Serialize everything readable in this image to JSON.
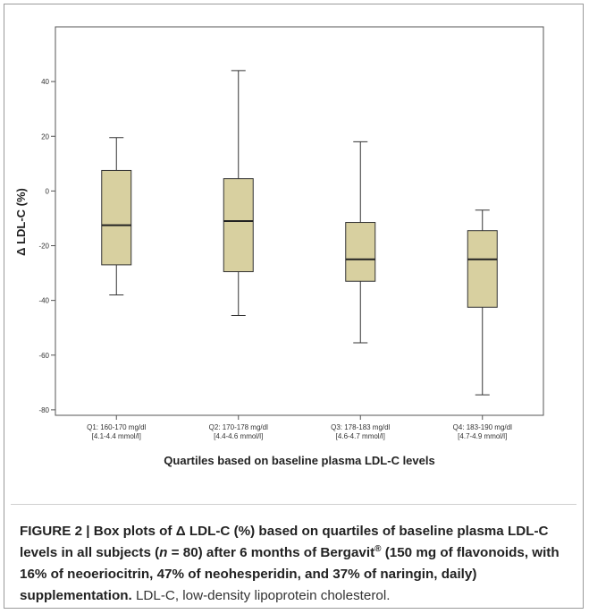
{
  "chart_data": {
    "type": "box",
    "ylabel": "Δ LDL-C (%)",
    "xlabel": "Quartiles  based on baseline plasma LDL-C levels",
    "ylim": [
      -82,
      60
    ],
    "yticks": [
      40,
      20,
      0,
      -20,
      -40,
      -60,
      -80
    ],
    "box_fill": "#d8d0a0",
    "categories": [
      {
        "line1": "Q1: 160-170 mg/dl",
        "line2": "[4.1-4.4 mmol/l]"
      },
      {
        "line1": "Q2: 170-178 mg/dl",
        "line2": "[4.4-4.6 mmol/l]"
      },
      {
        "line1": "Q3: 178-183 mg/dl",
        "line2": "[4.6-4.7 mmol/l]"
      },
      {
        "line1": "Q4: 183-190 mg/dl",
        "line2": "[4.7-4.9 mmol/l]"
      }
    ],
    "boxes": [
      {
        "whisker_low": -38,
        "q1": -27,
        "median": -12.5,
        "q3": 7.5,
        "whisker_high": 19.5
      },
      {
        "whisker_low": -45.5,
        "q1": -29.5,
        "median": -11,
        "q3": 4.5,
        "whisker_high": 44
      },
      {
        "whisker_low": -55.5,
        "q1": -33,
        "median": -25,
        "q3": -11.5,
        "whisker_high": 18
      },
      {
        "whisker_low": -74.5,
        "q1": -42.5,
        "median": -25,
        "q3": -14.5,
        "whisker_high": -7
      }
    ]
  },
  "caption": {
    "fig_label": "FIGURE 2 | Box plots of Δ LDL-C (%) based on quartiles of baseline plasma LDL-C levels in all subjects (",
    "n_var": "n",
    "n_rest": " = 80) after 6 months of Bergavit",
    "reg": "®",
    "bold_rest": "  (150 mg of flavonoids, with 16% of neoeriocitrin, 47% of neohesperidin, and 37% of naringin, daily) supplementation.",
    "normal_text": " LDL-C, low-density lipoprotein cholesterol."
  }
}
